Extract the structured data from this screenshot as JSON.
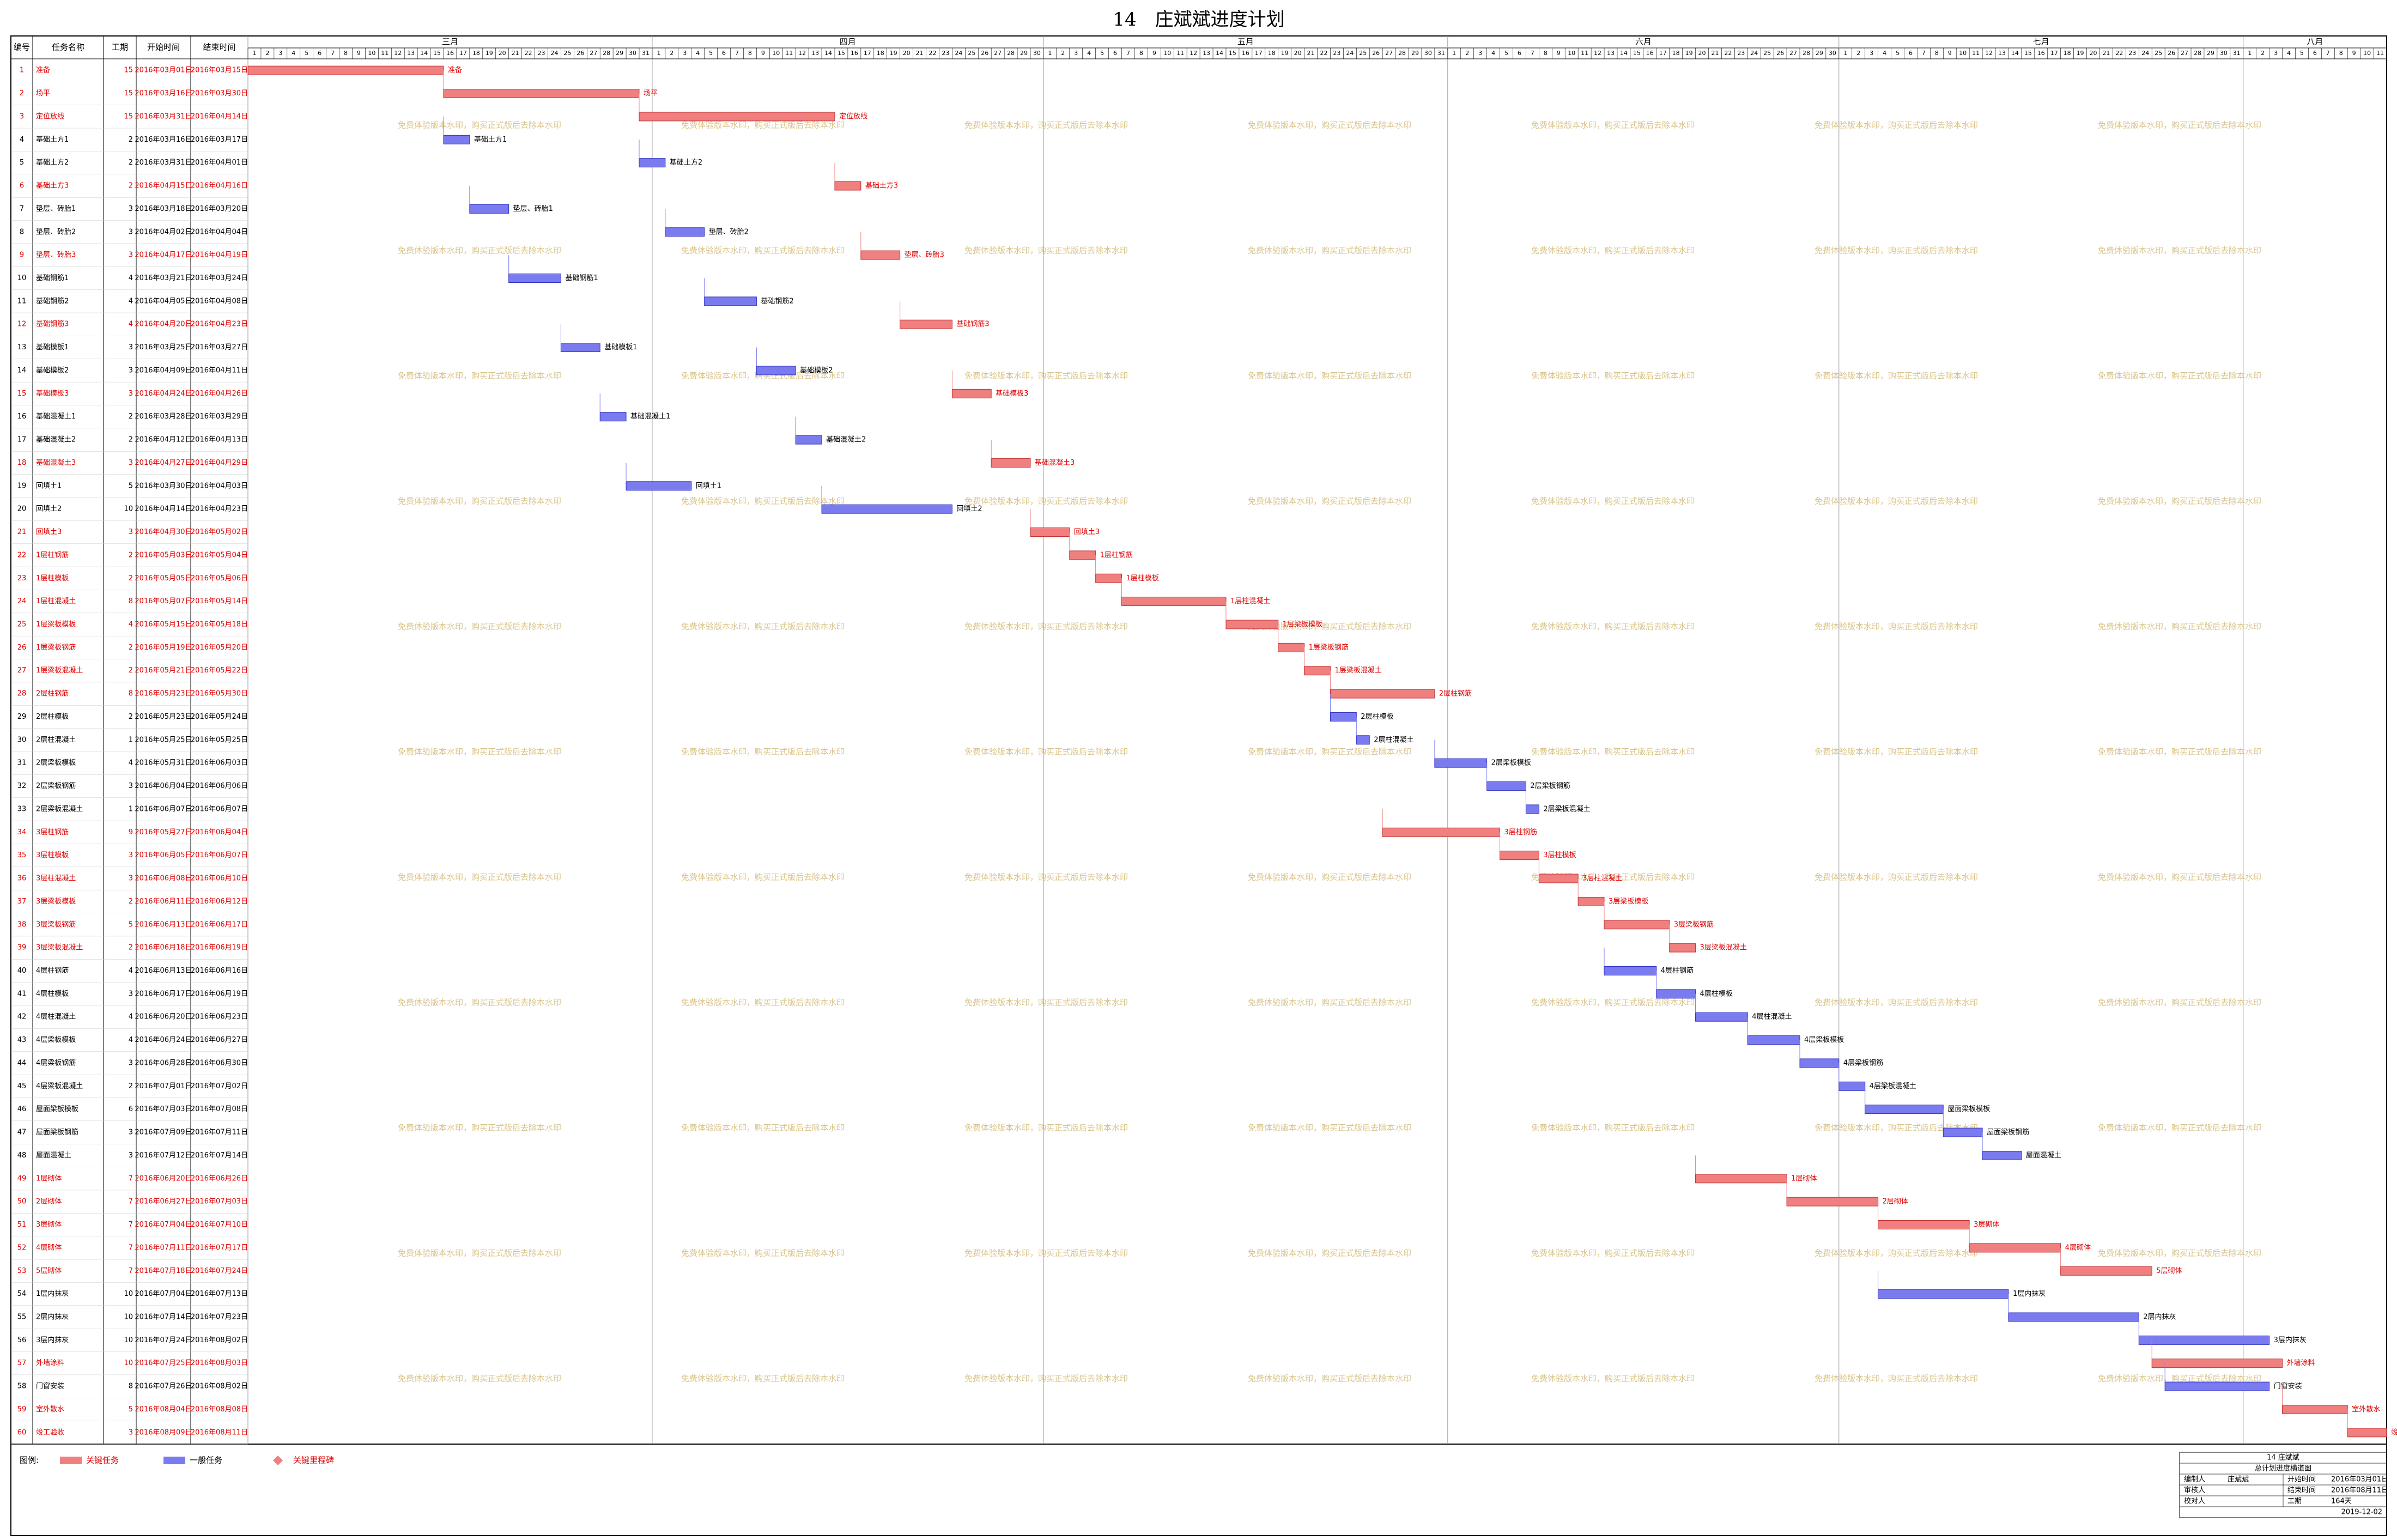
{
  "title": "14　庄斌斌进度计划",
  "watermark": "免费体验版本水印，购买正式版后去除本水印",
  "critical_color": "#f08080",
  "normal_color": "#7b7bf0",
  "months": [
    {
      "label": "三月",
      "days": [
        1,
        2,
        3,
        4,
        5,
        6,
        7,
        8,
        9,
        10,
        11,
        12,
        13,
        14,
        15,
        16,
        17,
        18,
        19,
        20,
        21,
        22,
        23,
        24,
        25,
        26,
        27,
        28,
        29,
        30,
        31
      ]
    },
    {
      "label": "四月",
      "days": [
        1,
        2,
        3,
        4,
        5,
        6,
        7,
        8,
        9,
        10,
        11,
        12,
        13,
        14,
        15,
        16,
        17,
        18,
        19,
        20,
        21,
        22,
        23,
        24,
        25,
        26,
        27,
        28,
        29,
        30
      ]
    },
    {
      "label": "五月",
      "days": [
        1,
        2,
        3,
        4,
        5,
        6,
        7,
        8,
        9,
        10,
        11,
        12,
        13,
        14,
        15,
        16,
        17,
        18,
        19,
        20,
        21,
        22,
        23,
        24,
        25,
        26,
        27,
        28,
        29,
        30,
        31
      ]
    },
    {
      "label": "六月",
      "days": [
        1,
        2,
        3,
        4,
        5,
        6,
        7,
        8,
        9,
        10,
        11,
        12,
        13,
        14,
        15,
        16,
        17,
        18,
        19,
        20,
        21,
        22,
        23,
        24,
        25,
        26,
        27,
        28,
        29,
        30
      ]
    },
    {
      "label": "七月",
      "days": [
        1,
        2,
        3,
        4,
        5,
        6,
        7,
        8,
        9,
        10,
        11,
        12,
        13,
        14,
        15,
        16,
        17,
        18,
        19,
        20,
        21,
        22,
        23,
        24,
        25,
        26,
        27,
        28,
        29,
        30,
        31
      ]
    },
    {
      "label": "八月",
      "days": [
        1,
        2,
        3,
        4,
        5,
        6,
        7,
        8,
        9,
        10,
        11
      ]
    }
  ],
  "table": {
    "columns": [
      "编号",
      "任务名称",
      "工期",
      "开始时间",
      "结束时间"
    ],
    "rows": [
      [
        1,
        "准备",
        15,
        "2016年03月01日",
        "2016年03月15日",
        true
      ],
      [
        2,
        "场平",
        15,
        "2016年03月16日",
        "2016年03月30日",
        true
      ],
      [
        3,
        "定位放线",
        15,
        "2016年03月31日",
        "2016年04月14日",
        true
      ],
      [
        4,
        "基础土方1",
        2,
        "2016年03月16日",
        "2016年03月17日",
        false
      ],
      [
        5,
        "基础土方2",
        2,
        "2016年03月31日",
        "2016年04月01日",
        false
      ],
      [
        6,
        "基础土方3",
        2,
        "2016年04月15日",
        "2016年04月16日",
        true
      ],
      [
        7,
        "垫层、砖胎1",
        3,
        "2016年03月18日",
        "2016年03月20日",
        false
      ],
      [
        8,
        "垫层、砖胎2",
        3,
        "2016年04月02日",
        "2016年04月04日",
        false
      ],
      [
        9,
        "垫层、砖胎3",
        3,
        "2016年04月17日",
        "2016年04月19日",
        true
      ],
      [
        10,
        "基础钢筋1",
        4,
        "2016年03月21日",
        "2016年03月24日",
        false
      ],
      [
        11,
        "基础钢筋2",
        4,
        "2016年04月05日",
        "2016年04月08日",
        false
      ],
      [
        12,
        "基础钢筋3",
        4,
        "2016年04月20日",
        "2016年04月23日",
        true
      ],
      [
        13,
        "基础模板1",
        3,
        "2016年03月25日",
        "2016年03月27日",
        false
      ],
      [
        14,
        "基础模板2",
        3,
        "2016年04月09日",
        "2016年04月11日",
        false
      ],
      [
        15,
        "基础模板3",
        3,
        "2016年04月24日",
        "2016年04月26日",
        true
      ],
      [
        16,
        "基础混凝土1",
        2,
        "2016年03月28日",
        "2016年03月29日",
        false
      ],
      [
        17,
        "基础混凝土2",
        2,
        "2016年04月12日",
        "2016年04月13日",
        false
      ],
      [
        18,
        "基础混凝土3",
        3,
        "2016年04月27日",
        "2016年04月29日",
        true
      ],
      [
        19,
        "回填土1",
        5,
        "2016年03月30日",
        "2016年04月03日",
        false
      ],
      [
        20,
        "回填土2",
        10,
        "2016年04月14日",
        "2016年04月23日",
        false
      ],
      [
        21,
        "回填土3",
        3,
        "2016年04月30日",
        "2016年05月02日",
        true
      ],
      [
        22,
        "1层柱钢筋",
        2,
        "2016年05月03日",
        "2016年05月04日",
        true
      ],
      [
        23,
        "1层柱模板",
        2,
        "2016年05月05日",
        "2016年05月06日",
        true
      ],
      [
        24,
        "1层柱混凝土",
        8,
        "2016年05月07日",
        "2016年05月14日",
        true
      ],
      [
        25,
        "1层梁板模板",
        4,
        "2016年05月15日",
        "2016年05月18日",
        true
      ],
      [
        26,
        "1层梁板钢筋",
        2,
        "2016年05月19日",
        "2016年05月20日",
        true
      ],
      [
        27,
        "1层梁板混凝土",
        2,
        "2016年05月21日",
        "2016年05月22日",
        true
      ],
      [
        28,
        "2层柱钢筋",
        8,
        "2016年05月23日",
        "2016年05月30日",
        true
      ],
      [
        29,
        "2层柱模板",
        2,
        "2016年05月23日",
        "2016年05月24日",
        false
      ],
      [
        30,
        "2层柱混凝土",
        1,
        "2016年05月25日",
        "2016年05月25日",
        false
      ],
      [
        31,
        "2层梁板模板",
        4,
        "2016年05月31日",
        "2016年06月03日",
        false
      ],
      [
        32,
        "2层梁板钢筋",
        3,
        "2016年06月04日",
        "2016年06月06日",
        false
      ],
      [
        33,
        "2层梁板混凝土",
        1,
        "2016年06月07日",
        "2016年06月07日",
        false
      ],
      [
        34,
        "3层柱钢筋",
        9,
        "2016年05月27日",
        "2016年06月04日",
        true
      ],
      [
        35,
        "3层柱模板",
        3,
        "2016年06月05日",
        "2016年06月07日",
        true
      ],
      [
        36,
        "3层柱混凝土",
        3,
        "2016年06月08日",
        "2016年06月10日",
        true
      ],
      [
        37,
        "3层梁板模板",
        2,
        "2016年06月11日",
        "2016年06月12日",
        true
      ],
      [
        38,
        "3层梁板钢筋",
        5,
        "2016年06月13日",
        "2016年06月17日",
        true
      ],
      [
        39,
        "3层梁板混凝土",
        2,
        "2016年06月18日",
        "2016年06月19日",
        true
      ],
      [
        40,
        "4层柱钢筋",
        4,
        "2016年06月13日",
        "2016年06月16日",
        false
      ],
      [
        41,
        "4层柱模板",
        3,
        "2016年06月17日",
        "2016年06月19日",
        false
      ],
      [
        42,
        "4层柱混凝土",
        4,
        "2016年06月20日",
        "2016年06月23日",
        false
      ],
      [
        43,
        "4层梁板模板",
        4,
        "2016年06月24日",
        "2016年06月27日",
        false
      ],
      [
        44,
        "4层梁板钢筋",
        3,
        "2016年06月28日",
        "2016年06月30日",
        false
      ],
      [
        45,
        "4层梁板混凝土",
        2,
        "2016年07月01日",
        "2016年07月02日",
        false
      ],
      [
        46,
        "屋面梁板模板",
        6,
        "2016年07月03日",
        "2016年07月08日",
        false
      ],
      [
        47,
        "屋面梁板钢筋",
        3,
        "2016年07月09日",
        "2016年07月11日",
        false
      ],
      [
        48,
        "屋面混凝土",
        3,
        "2016年07月12日",
        "2016年07月14日",
        false
      ],
      [
        49,
        "1层砌体",
        7,
        "2016年06月20日",
        "2016年06月26日",
        true
      ],
      [
        50,
        "2层砌体",
        7,
        "2016年06月27日",
        "2016年07月03日",
        true
      ],
      [
        51,
        "3层砌体",
        7,
        "2016年07月04日",
        "2016年07月10日",
        true
      ],
      [
        52,
        "4层砌体",
        7,
        "2016年07月11日",
        "2016年07月17日",
        true
      ],
      [
        53,
        "5层砌体",
        7,
        "2016年07月18日",
        "2016年07月24日",
        true
      ],
      [
        54,
        "1层内抹灰",
        10,
        "2016年07月04日",
        "2016年07月13日",
        false
      ],
      [
        55,
        "2层内抹灰",
        10,
        "2016年07月14日",
        "2016年07月23日",
        false
      ],
      [
        56,
        "3层内抹灰",
        10,
        "2016年07月24日",
        "2016年08月02日",
        false
      ],
      [
        57,
        "外墙涂料",
        10,
        "2016年07月25日",
        "2016年08月03日",
        true
      ],
      [
        58,
        "门窗安装",
        8,
        "2016年07月26日",
        "2016年08月02日",
        false
      ],
      [
        59,
        "室外散水",
        5,
        "2016年08月04日",
        "2016年08月08日",
        true
      ],
      [
        60,
        "竣工验收",
        3,
        "2016年08月09日",
        "2016年08月11日",
        true
      ]
    ]
  },
  "legend": {
    "label": "图例:",
    "items": [
      "关键任务",
      "一般任务",
      "关键里程碑"
    ]
  },
  "info": {
    "title": "14 庄斌斌",
    "subtitle": "总计划进度横道图",
    "fields": [
      [
        "编制人",
        "庄斌斌"
      ],
      [
        "开始时间",
        "2016年03月01日"
      ],
      [
        "审核人"
      ],
      [
        "结束时间",
        "2016年08月11日"
      ],
      [
        "校对人"
      ],
      [
        "工期",
        "164天"
      ]
    ],
    "date": "2019-12-02"
  }
}
